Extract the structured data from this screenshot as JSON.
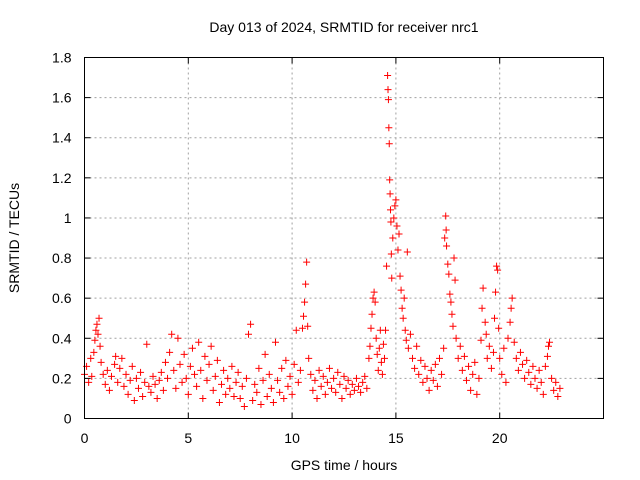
{
  "chart_data": {
    "type": "scatter",
    "title": "Day 013 of 2024, SRMTID for receiver nrc1",
    "xlabel": "GPS time / hours",
    "ylabel": "SRMTID / TECUs",
    "xlim": [
      0,
      25
    ],
    "ylim": [
      0,
      1.8
    ],
    "xticks": [
      0,
      5,
      10,
      15,
      20
    ],
    "yticks": [
      0,
      0.2,
      0.4,
      0.6,
      0.8,
      1,
      1.2,
      1.4,
      1.6,
      1.8
    ],
    "xtick_labels": [
      "0",
      "5",
      "10",
      "15",
      "20"
    ],
    "ytick_labels": [
      "0",
      "0.2",
      "0.4",
      "0.6",
      "0.8",
      "1",
      "1.2",
      "1.4",
      "1.6",
      "1.8"
    ],
    "grid": true,
    "marker": "+",
    "color": "#ff0000",
    "series": [
      {
        "name": "SRMTID",
        "points": [
          [
            0.0,
            0.22
          ],
          [
            0.1,
            0.26
          ],
          [
            0.2,
            0.18
          ],
          [
            0.3,
            0.3
          ],
          [
            0.35,
            0.21
          ],
          [
            0.45,
            0.33
          ],
          [
            0.5,
            0.39
          ],
          [
            0.55,
            0.44
          ],
          [
            0.6,
            0.47
          ],
          [
            0.65,
            0.42
          ],
          [
            0.7,
            0.5
          ],
          [
            0.75,
            0.36
          ],
          [
            0.8,
            0.28
          ],
          [
            0.9,
            0.22
          ],
          [
            1.0,
            0.17
          ],
          [
            1.1,
            0.24
          ],
          [
            1.2,
            0.14
          ],
          [
            1.3,
            0.21
          ],
          [
            1.45,
            0.27
          ],
          [
            1.5,
            0.31
          ],
          [
            1.6,
            0.18
          ],
          [
            1.7,
            0.25
          ],
          [
            1.8,
            0.3
          ],
          [
            1.9,
            0.16
          ],
          [
            2.0,
            0.22
          ],
          [
            2.1,
            0.12
          ],
          [
            2.2,
            0.19
          ],
          [
            2.3,
            0.26
          ],
          [
            2.4,
            0.09
          ],
          [
            2.5,
            0.2
          ],
          [
            2.6,
            0.15
          ],
          [
            2.7,
            0.23
          ],
          [
            2.8,
            0.11
          ],
          [
            2.9,
            0.18
          ],
          [
            3.0,
            0.37
          ],
          [
            3.1,
            0.16
          ],
          [
            3.2,
            0.13
          ],
          [
            3.3,
            0.21
          ],
          [
            3.4,
            0.17
          ],
          [
            3.5,
            0.1
          ],
          [
            3.6,
            0.19
          ],
          [
            3.7,
            0.23
          ],
          [
            3.8,
            0.14
          ],
          [
            3.9,
            0.28
          ],
          [
            4.0,
            0.2
          ],
          [
            4.1,
            0.33
          ],
          [
            4.2,
            0.42
          ],
          [
            4.3,
            0.24
          ],
          [
            4.4,
            0.15
          ],
          [
            4.5,
            0.4
          ],
          [
            4.6,
            0.27
          ],
          [
            4.7,
            0.18
          ],
          [
            4.8,
            0.32
          ],
          [
            4.9,
            0.2
          ],
          [
            5.0,
            0.12
          ],
          [
            5.1,
            0.26
          ],
          [
            5.2,
            0.35
          ],
          [
            5.3,
            0.22
          ],
          [
            5.4,
            0.16
          ],
          [
            5.5,
            0.38
          ],
          [
            5.6,
            0.24
          ],
          [
            5.7,
            0.1
          ],
          [
            5.8,
            0.31
          ],
          [
            5.9,
            0.19
          ],
          [
            6.0,
            0.27
          ],
          [
            6.1,
            0.36
          ],
          [
            6.2,
            0.14
          ],
          [
            6.3,
            0.21
          ],
          [
            6.4,
            0.29
          ],
          [
            6.5,
            0.08
          ],
          [
            6.6,
            0.17
          ],
          [
            6.7,
            0.24
          ],
          [
            6.8,
            0.12
          ],
          [
            6.9,
            0.2
          ],
          [
            7.0,
            0.15
          ],
          [
            7.1,
            0.26
          ],
          [
            7.2,
            0.11
          ],
          [
            7.3,
            0.18
          ],
          [
            7.4,
            0.23
          ],
          [
            7.5,
            0.1
          ],
          [
            7.6,
            0.16
          ],
          [
            7.7,
            0.06
          ],
          [
            7.8,
            0.2
          ],
          [
            7.9,
            0.42
          ],
          [
            8.0,
            0.47
          ],
          [
            8.1,
            0.09
          ],
          [
            8.2,
            0.17
          ],
          [
            8.3,
            0.13
          ],
          [
            8.4,
            0.25
          ],
          [
            8.5,
            0.07
          ],
          [
            8.6,
            0.19
          ],
          [
            8.7,
            0.32
          ],
          [
            8.8,
            0.11
          ],
          [
            8.9,
            0.22
          ],
          [
            9.0,
            0.15
          ],
          [
            9.1,
            0.08
          ],
          [
            9.2,
            0.38
          ],
          [
            9.3,
            0.19
          ],
          [
            9.4,
            0.13
          ],
          [
            9.5,
            0.25
          ],
          [
            9.6,
            0.1
          ],
          [
            9.7,
            0.29
          ],
          [
            9.8,
            0.16
          ],
          [
            9.9,
            0.21
          ],
          [
            10.0,
            0.12
          ],
          [
            10.1,
            0.27
          ],
          [
            10.2,
            0.44
          ],
          [
            10.3,
            0.18
          ],
          [
            10.4,
            0.24
          ],
          [
            10.5,
            0.45
          ],
          [
            10.55,
            0.51
          ],
          [
            10.6,
            0.58
          ],
          [
            10.65,
            0.67
          ],
          [
            10.7,
            0.78
          ],
          [
            10.75,
            0.46
          ],
          [
            10.8,
            0.3
          ],
          [
            10.9,
            0.22
          ],
          [
            11.0,
            0.14
          ],
          [
            11.1,
            0.19
          ],
          [
            11.2,
            0.1
          ],
          [
            11.3,
            0.24
          ],
          [
            11.4,
            0.16
          ],
          [
            11.5,
            0.21
          ],
          [
            11.6,
            0.12
          ],
          [
            11.7,
            0.18
          ],
          [
            11.8,
            0.25
          ],
          [
            11.9,
            0.15
          ],
          [
            12.0,
            0.2
          ],
          [
            12.1,
            0.13
          ],
          [
            12.2,
            0.23
          ],
          [
            12.3,
            0.17
          ],
          [
            12.4,
            0.1
          ],
          [
            12.5,
            0.21
          ],
          [
            12.6,
            0.15
          ],
          [
            12.7,
            0.19
          ],
          [
            12.8,
            0.12
          ],
          [
            12.9,
            0.17
          ],
          [
            13.0,
            0.14
          ],
          [
            13.1,
            0.2
          ],
          [
            13.2,
            0.16
          ],
          [
            13.3,
            0.13
          ],
          [
            13.4,
            0.18
          ],
          [
            13.5,
            0.21
          ],
          [
            13.6,
            0.15
          ],
          [
            13.7,
            0.3
          ],
          [
            13.75,
            0.36
          ],
          [
            13.8,
            0.45
          ],
          [
            13.85,
            0.52
          ],
          [
            13.9,
            0.6
          ],
          [
            13.95,
            0.63
          ],
          [
            14.0,
            0.58
          ],
          [
            14.05,
            0.4
          ],
          [
            14.1,
            0.32
          ],
          [
            14.15,
            0.24
          ],
          [
            14.2,
            0.35
          ],
          [
            14.25,
            0.44
          ],
          [
            14.3,
            0.28
          ],
          [
            14.35,
            0.22
          ],
          [
            14.4,
            0.37
          ],
          [
            14.45,
            0.3
          ],
          [
            14.5,
            0.44
          ],
          [
            14.55,
            0.76
          ],
          [
            14.6,
            1.71
          ],
          [
            14.62,
            1.64
          ],
          [
            14.64,
            1.59
          ],
          [
            14.66,
            1.45
          ],
          [
            14.68,
            1.37
          ],
          [
            14.7,
            1.19
          ],
          [
            14.72,
            1.12
          ],
          [
            14.74,
            1.04
          ],
          [
            14.76,
            0.98
          ],
          [
            14.78,
            0.82
          ],
          [
            14.8,
            0.7
          ],
          [
            14.85,
            0.9
          ],
          [
            14.9,
            1.0
          ],
          [
            14.95,
            1.06
          ],
          [
            15.0,
            1.09
          ],
          [
            15.05,
            0.96
          ],
          [
            15.1,
            0.84
          ],
          [
            15.15,
            0.92
          ],
          [
            15.2,
            0.71
          ],
          [
            15.25,
            0.64
          ],
          [
            15.3,
            0.55
          ],
          [
            15.35,
            0.5
          ],
          [
            15.4,
            0.6
          ],
          [
            15.45,
            0.44
          ],
          [
            15.5,
            0.39
          ],
          [
            15.55,
            0.83
          ],
          [
            15.6,
            0.35
          ],
          [
            15.7,
            0.42
          ],
          [
            15.8,
            0.3
          ],
          [
            15.9,
            0.25
          ],
          [
            16.0,
            0.36
          ],
          [
            16.1,
            0.22
          ],
          [
            16.2,
            0.29
          ],
          [
            16.3,
            0.18
          ],
          [
            16.4,
            0.26
          ],
          [
            16.5,
            0.2
          ],
          [
            16.6,
            0.14
          ],
          [
            16.7,
            0.24
          ],
          [
            16.8,
            0.19
          ],
          [
            16.9,
            0.27
          ],
          [
            17.0,
            0.16
          ],
          [
            17.1,
            0.3
          ],
          [
            17.2,
            0.22
          ],
          [
            17.3,
            0.35
          ],
          [
            17.35,
            0.9
          ],
          [
            17.4,
            1.01
          ],
          [
            17.42,
            0.94
          ],
          [
            17.44,
            0.86
          ],
          [
            17.5,
            0.77
          ],
          [
            17.55,
            0.72
          ],
          [
            17.6,
            0.62
          ],
          [
            17.65,
            0.58
          ],
          [
            17.7,
            0.52
          ],
          [
            17.75,
            0.46
          ],
          [
            17.8,
            0.8
          ],
          [
            17.85,
            0.69
          ],
          [
            17.9,
            0.4
          ],
          [
            18.0,
            0.3
          ],
          [
            18.1,
            0.36
          ],
          [
            18.2,
            0.24
          ],
          [
            18.3,
            0.31
          ],
          [
            18.4,
            0.19
          ],
          [
            18.5,
            0.26
          ],
          [
            18.6,
            0.14
          ],
          [
            18.7,
            0.22
          ],
          [
            18.8,
            0.28
          ],
          [
            18.9,
            0.12
          ],
          [
            19.0,
            0.2
          ],
          [
            19.1,
            0.39
          ],
          [
            19.15,
            0.55
          ],
          [
            19.2,
            0.65
          ],
          [
            19.3,
            0.48
          ],
          [
            19.35,
            0.42
          ],
          [
            19.4,
            0.3
          ],
          [
            19.5,
            0.36
          ],
          [
            19.6,
            0.25
          ],
          [
            19.7,
            0.33
          ],
          [
            19.75,
            0.5
          ],
          [
            19.8,
            0.63
          ],
          [
            19.85,
            0.76
          ],
          [
            19.9,
            0.74
          ],
          [
            19.95,
            0.45
          ],
          [
            20.0,
            0.3
          ],
          [
            20.1,
            0.22
          ],
          [
            20.2,
            0.35
          ],
          [
            20.3,
            0.18
          ],
          [
            20.4,
            0.4
          ],
          [
            20.5,
            0.48
          ],
          [
            20.55,
            0.55
          ],
          [
            20.6,
            0.6
          ],
          [
            20.7,
            0.38
          ],
          [
            20.8,
            0.3
          ],
          [
            20.9,
            0.24
          ],
          [
            21.0,
            0.33
          ],
          [
            21.1,
            0.27
          ],
          [
            21.2,
            0.2
          ],
          [
            21.3,
            0.29
          ],
          [
            21.4,
            0.23
          ],
          [
            21.5,
            0.17
          ],
          [
            21.6,
            0.26
          ],
          [
            21.7,
            0.2
          ],
          [
            21.8,
            0.15
          ],
          [
            21.9,
            0.24
          ],
          [
            22.0,
            0.18
          ],
          [
            22.1,
            0.12
          ],
          [
            22.2,
            0.26
          ],
          [
            22.3,
            0.31
          ],
          [
            22.35,
            0.36
          ],
          [
            22.4,
            0.38
          ],
          [
            22.5,
            0.2
          ],
          [
            22.6,
            0.14
          ],
          [
            22.7,
            0.18
          ],
          [
            22.8,
            0.11
          ],
          [
            22.9,
            0.15
          ]
        ]
      }
    ]
  }
}
